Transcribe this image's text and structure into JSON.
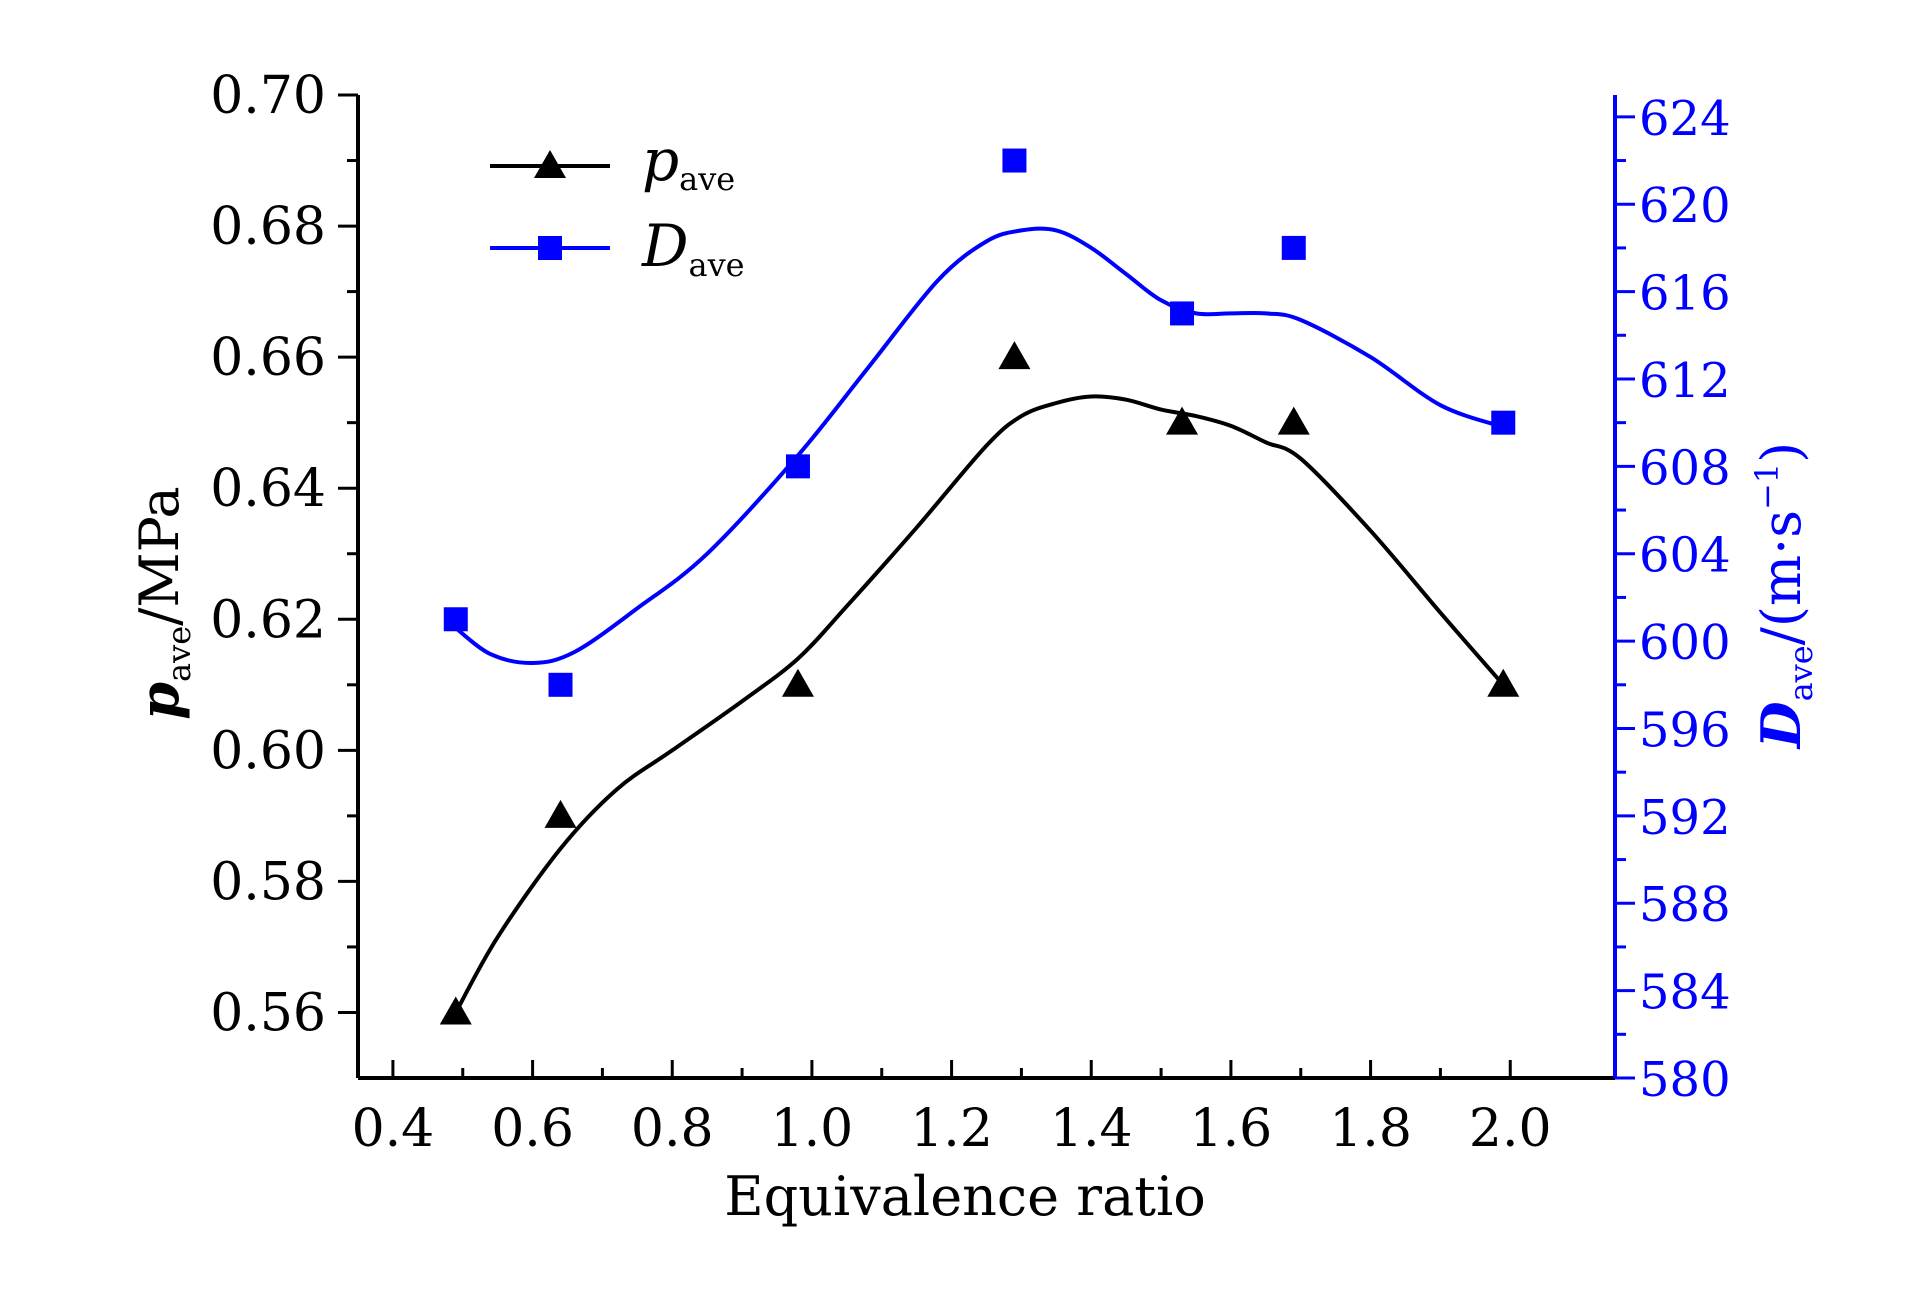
{
  "chart_data": {
    "type": "scatter",
    "title": "",
    "xlabel": "Equivalence ratio",
    "xlim": [
      0.35,
      2.15
    ],
    "x_ticks": [
      0.4,
      0.6,
      0.8,
      1.0,
      1.2,
      1.4,
      1.6,
      1.8,
      2.0
    ],
    "x_tick_labels": [
      "0.4",
      "0.6",
      "0.8",
      "1.0",
      "1.2",
      "1.4",
      "1.6",
      "1.8",
      "2.0"
    ],
    "y_left": {
      "label_main": "p",
      "label_sub": "ave",
      "label_unit": "/MPa",
      "ylim": [
        0.55,
        0.7
      ],
      "ticks": [
        0.56,
        0.58,
        0.6,
        0.62,
        0.64,
        0.66,
        0.68,
        0.7
      ],
      "tick_labels": [
        "0.56",
        "0.58",
        "0.60",
        "0.62",
        "0.64",
        "0.66",
        "0.68",
        "0.70"
      ]
    },
    "y_right": {
      "label_main": "D",
      "label_sub": "ave",
      "label_unit": "/(m·s",
      "label_sup": "−1",
      "label_close": ")",
      "ylim": [
        580,
        625
      ],
      "ticks": [
        580,
        584,
        588,
        592,
        596,
        600,
        604,
        608,
        612,
        616,
        620,
        624
      ],
      "tick_labels": [
        "580",
        "584",
        "588",
        "592",
        "596",
        "600",
        "604",
        "608",
        "612",
        "616",
        "620",
        "624"
      ]
    },
    "legend_position": "top-left",
    "series": [
      {
        "name": "p",
        "name_sub": "ave",
        "axis": "left",
        "marker": "triangle",
        "color": "#000000",
        "x": [
          0.49,
          0.64,
          0.98,
          1.29,
          1.53,
          1.69,
          1.99
        ],
        "y": [
          0.56,
          0.59,
          0.61,
          0.66,
          0.65,
          0.65,
          0.61
        ],
        "smooth_curve": {
          "x": [
            0.49,
            0.55,
            0.64,
            0.72,
            0.8,
            0.9,
            0.98,
            1.05,
            1.15,
            1.25,
            1.3,
            1.35,
            1.4,
            1.45,
            1.5,
            1.55,
            1.6,
            1.65,
            1.7,
            1.8,
            1.9,
            1.99
          ],
          "y": [
            0.56,
            0.5715,
            0.585,
            0.594,
            0.6,
            0.6075,
            0.614,
            0.622,
            0.634,
            0.6465,
            0.651,
            0.653,
            0.654,
            0.6535,
            0.652,
            0.651,
            0.6495,
            0.647,
            0.6445,
            0.6335,
            0.621,
            0.61
          ]
        }
      },
      {
        "name": "D",
        "name_sub": "ave",
        "axis": "right",
        "marker": "square",
        "color": "#0000ff",
        "x": [
          0.49,
          0.64,
          0.98,
          1.29,
          1.53,
          1.69,
          1.99
        ],
        "y": [
          601,
          598,
          608,
          622,
          615,
          618,
          610
        ],
        "smooth_curve": {
          "x": [
            0.49,
            0.54,
            0.6,
            0.66,
            0.75,
            0.85,
            0.98,
            1.08,
            1.18,
            1.25,
            1.3,
            1.35,
            1.4,
            1.45,
            1.5,
            1.55,
            1.6,
            1.65,
            1.7,
            1.8,
            1.9,
            1.99
          ],
          "y": [
            600.6,
            599.4,
            599.0,
            599.5,
            601.5,
            604.0,
            608.5,
            612.5,
            616.5,
            618.3,
            618.8,
            618.8,
            618.0,
            616.8,
            615.6,
            615.0,
            615.0,
            615.0,
            614.7,
            613.0,
            610.8,
            609.8
          ]
        }
      }
    ]
  }
}
